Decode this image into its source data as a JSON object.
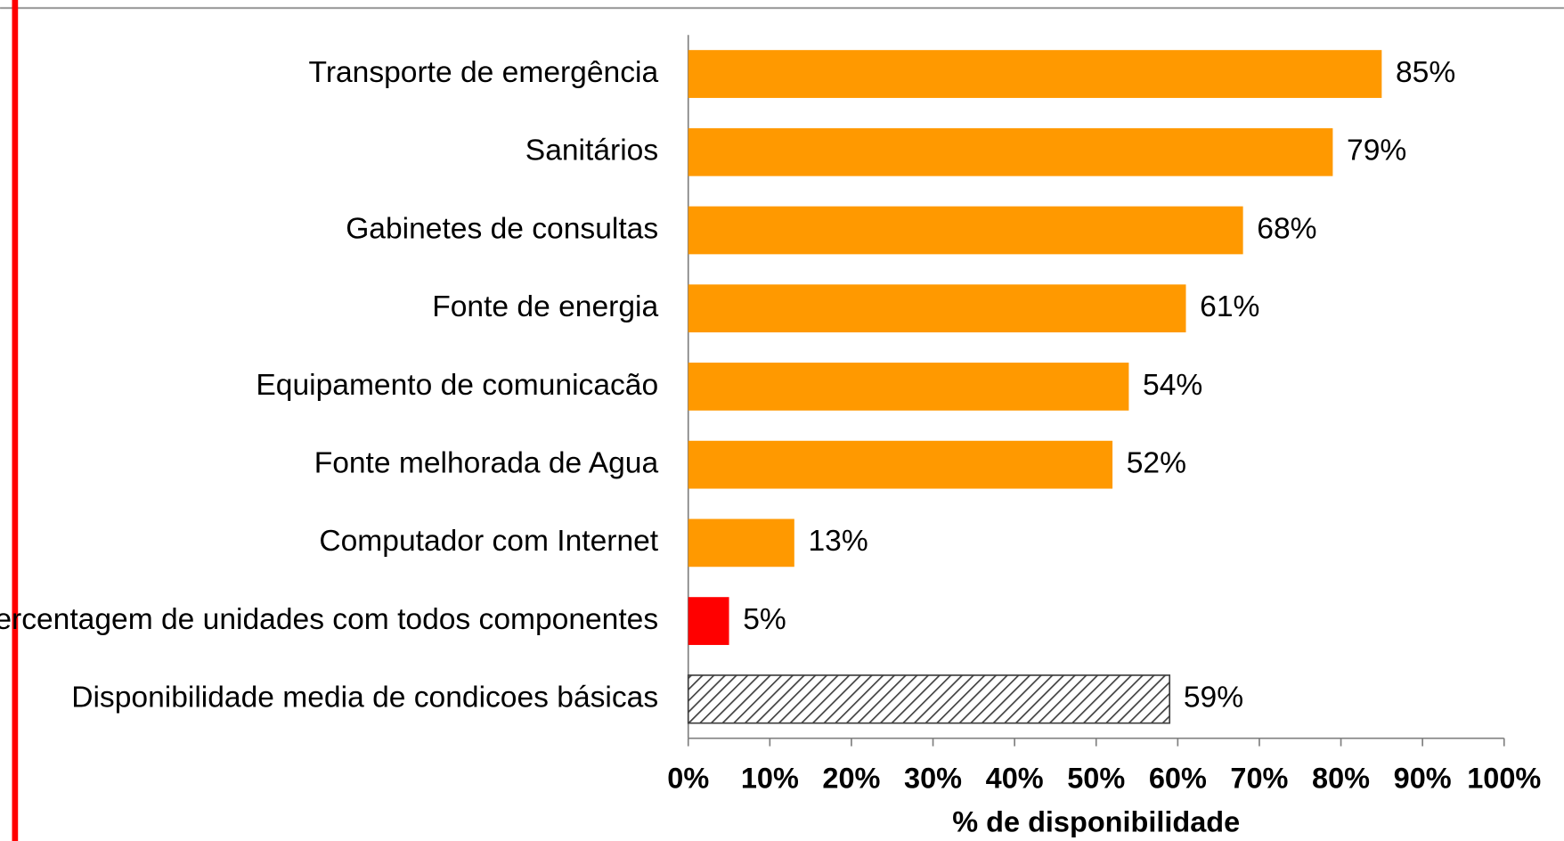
{
  "chart_data": {
    "type": "barh",
    "x_label": "% de disponibilidade",
    "categories": [
      "Transporte de emergência",
      "Sanitários",
      "Gabinetes de consultas",
      "Fonte de energia",
      "Equipamento de comunicacão",
      "Fonte melhorada de Agua",
      "Computador com Internet",
      "Percentagem de unidades com todos componentes",
      "Disponibilidade media de condicoes básicas"
    ],
    "values": [
      85,
      79,
      68,
      61,
      54,
      52,
      13,
      5,
      59
    ],
    "value_labels": [
      "85%",
      "79%",
      "68%",
      "61%",
      "54%",
      "52%",
      "13%",
      "5%",
      "59%"
    ],
    "colors": [
      "#ff9900",
      "#ff9900",
      "#ff9900",
      "#ff9900",
      "#ff9900",
      "#ff9900",
      "#ff9900",
      "#ff0000",
      "#404040"
    ],
    "hatch": [
      false,
      false,
      false,
      false,
      false,
      false,
      false,
      false,
      true
    ],
    "xlim": [
      0,
      100
    ],
    "xticks": [
      {
        "value": 0,
        "label": "0%"
      },
      {
        "value": 10,
        "label": "10%"
      },
      {
        "value": 20,
        "label": "20%"
      },
      {
        "value": 30,
        "label": "30%"
      },
      {
        "value": 40,
        "label": "40%"
      },
      {
        "value": 50,
        "label": "50%"
      },
      {
        "value": 60,
        "label": "60%"
      },
      {
        "value": 70,
        "label": "70%"
      },
      {
        "value": 80,
        "label": "80%"
      },
      {
        "value": 90,
        "label": "90%"
      },
      {
        "value": 100,
        "label": "100%"
      }
    ],
    "grid": false
  }
}
